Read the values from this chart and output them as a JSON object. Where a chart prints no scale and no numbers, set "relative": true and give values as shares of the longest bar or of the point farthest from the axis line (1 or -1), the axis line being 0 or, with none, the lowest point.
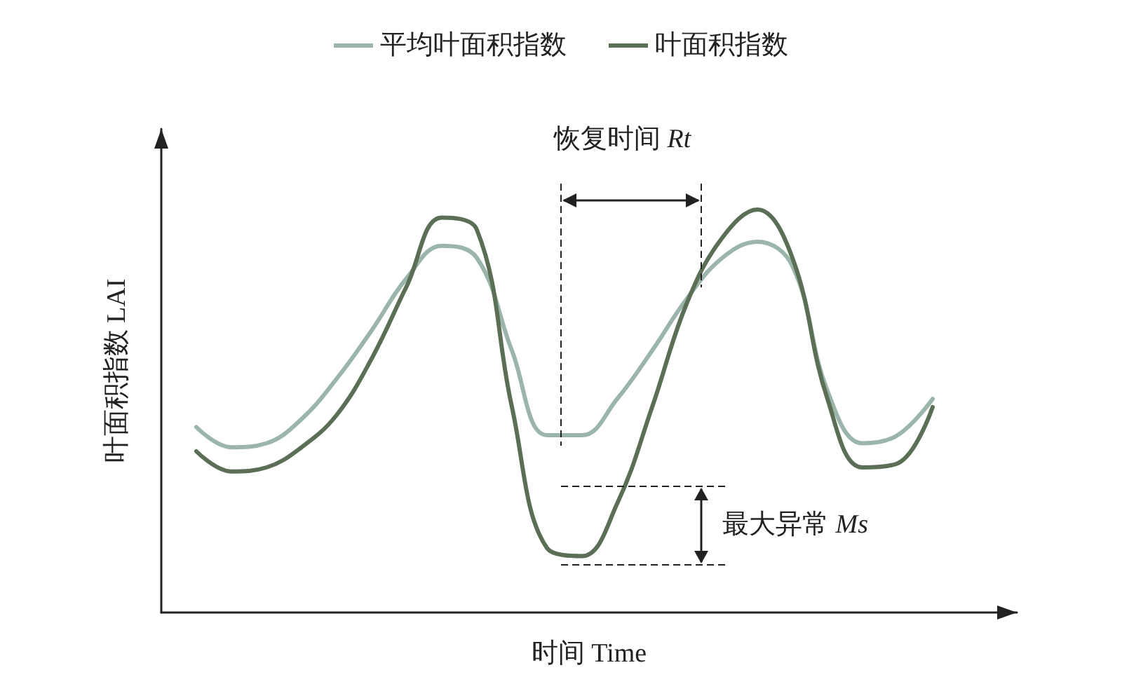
{
  "chart_data": {
    "type": "line",
    "relative": true,
    "xlabel": "时间 Time",
    "ylabel": "叶面积指数 LAI",
    "legend": "top",
    "marker": "none",
    "line_style": "solid",
    "grid": false,
    "tick_labels": false,
    "categories": [
      null,
      null,
      null,
      null,
      null,
      null,
      null,
      null,
      null,
      null,
      null,
      null,
      null,
      null,
      null,
      null,
      null,
      null,
      null,
      null,
      null,
      null
    ],
    "series": [
      {
        "name": "平均叶面积指数",
        "color": "#9bb5aa",
        "values": [
          0.46,
          0.41,
          0.42,
          0.48,
          0.58,
          0.7,
          0.83,
          0.91,
          0.88,
          0.65,
          0.44,
          0.44,
          0.53,
          0.65,
          0.78,
          0.88,
          0.92,
          0.86,
          0.55,
          0.42,
          0.44,
          0.53
        ]
      },
      {
        "name": "叶面积指数",
        "color": "#5b6e56",
        "values": [
          0.4,
          0.35,
          0.36,
          0.41,
          0.49,
          0.63,
          0.81,
          0.98,
          0.95,
          0.51,
          0.16,
          0.14,
          0.27,
          0.51,
          0.77,
          0.93,
          1.0,
          0.88,
          0.53,
          0.36,
          0.37,
          0.51
        ]
      }
    ],
    "annotations": [
      "恢复时间 Rt",
      "最大异常 Ms"
    ]
  }
}
